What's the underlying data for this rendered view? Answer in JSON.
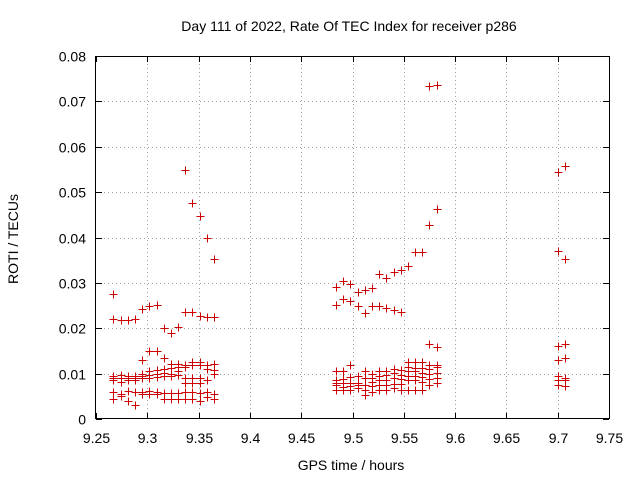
{
  "chart_data": {
    "type": "scatter",
    "title": "Day 111 of 2022, Rate Of TEC Index for receiver p286",
    "xlabel": "GPS time / hours",
    "ylabel": "ROTI / TECUs",
    "xlim": [
      9.25,
      9.75
    ],
    "ylim": [
      0,
      0.08
    ],
    "xticks": [
      "9.25",
      "9.3",
      "9.35",
      "9.4",
      "9.45",
      "9.5",
      "9.55",
      "9.6",
      "9.65",
      "9.7",
      "9.75"
    ],
    "yticks": [
      "0",
      "0.01",
      "0.02",
      "0.03",
      "0.04",
      "0.05",
      "0.06",
      "0.07",
      "0.08"
    ],
    "grid": true,
    "marker": "+",
    "color": "#cc0000",
    "series": [
      {
        "name": "ROTI",
        "points": [
          [
            9.267,
            0.0275
          ],
          [
            9.267,
            0.022
          ],
          [
            9.267,
            0.0095
          ],
          [
            9.267,
            0.009
          ],
          [
            9.267,
            0.0085
          ],
          [
            9.267,
            0.006
          ],
          [
            9.267,
            0.0045
          ],
          [
            9.274,
            0.0218
          ],
          [
            9.274,
            0.0098
          ],
          [
            9.274,
            0.009
          ],
          [
            9.274,
            0.0082
          ],
          [
            9.274,
            0.0055
          ],
          [
            9.274,
            0.005
          ],
          [
            9.281,
            0.0218
          ],
          [
            9.281,
            0.0095
          ],
          [
            9.281,
            0.009
          ],
          [
            9.281,
            0.0085
          ],
          [
            9.281,
            0.0062
          ],
          [
            9.281,
            0.004
          ],
          [
            9.288,
            0.022
          ],
          [
            9.288,
            0.0095
          ],
          [
            9.288,
            0.009
          ],
          [
            9.288,
            0.0087
          ],
          [
            9.288,
            0.006
          ],
          [
            9.288,
            0.003
          ],
          [
            9.295,
            0.0243
          ],
          [
            9.295,
            0.013
          ],
          [
            9.295,
            0.01
          ],
          [
            9.295,
            0.0095
          ],
          [
            9.295,
            0.009
          ],
          [
            9.295,
            0.006
          ],
          [
            9.295,
            0.0055
          ],
          [
            9.302,
            0.025
          ],
          [
            9.302,
            0.015
          ],
          [
            9.302,
            0.0105
          ],
          [
            9.302,
            0.0098
          ],
          [
            9.302,
            0.009
          ],
          [
            9.302,
            0.0062
          ],
          [
            9.302,
            0.0055
          ],
          [
            9.309,
            0.0252
          ],
          [
            9.309,
            0.015
          ],
          [
            9.309,
            0.0108
          ],
          [
            9.309,
            0.01
          ],
          [
            9.309,
            0.0092
          ],
          [
            9.309,
            0.006
          ],
          [
            9.309,
            0.0055
          ],
          [
            9.316,
            0.02
          ],
          [
            9.316,
            0.0135
          ],
          [
            9.316,
            0.011
          ],
          [
            9.316,
            0.0102
          ],
          [
            9.316,
            0.0095
          ],
          [
            9.316,
            0.0058
          ],
          [
            9.316,
            0.0043
          ],
          [
            9.323,
            0.019
          ],
          [
            9.323,
            0.0122
          ],
          [
            9.323,
            0.0112
          ],
          [
            9.323,
            0.01
          ],
          [
            9.323,
            0.0095
          ],
          [
            9.323,
            0.0058
          ],
          [
            9.323,
            0.0043
          ],
          [
            9.33,
            0.0202
          ],
          [
            9.33,
            0.0122
          ],
          [
            9.33,
            0.0115
          ],
          [
            9.33,
            0.0105
          ],
          [
            9.33,
            0.0098
          ],
          [
            9.33,
            0.0058
          ],
          [
            9.33,
            0.0043
          ],
          [
            9.337,
            0.0548
          ],
          [
            9.337,
            0.0235
          ],
          [
            9.337,
            0.0118
          ],
          [
            9.337,
            0.0115
          ],
          [
            9.337,
            0.009
          ],
          [
            9.337,
            0.008
          ],
          [
            9.337,
            0.006
          ],
          [
            9.337,
            0.0045
          ],
          [
            9.344,
            0.0475
          ],
          [
            9.344,
            0.0235
          ],
          [
            9.344,
            0.0125
          ],
          [
            9.344,
            0.012
          ],
          [
            9.344,
            0.009
          ],
          [
            9.344,
            0.008
          ],
          [
            9.344,
            0.006
          ],
          [
            9.344,
            0.0045
          ],
          [
            9.351,
            0.0448
          ],
          [
            9.351,
            0.0228
          ],
          [
            9.351,
            0.0125
          ],
          [
            9.351,
            0.012
          ],
          [
            9.351,
            0.009
          ],
          [
            9.351,
            0.008
          ],
          [
            9.351,
            0.0058
          ],
          [
            9.351,
            0.004
          ],
          [
            9.358,
            0.0398
          ],
          [
            9.358,
            0.0225
          ],
          [
            9.358,
            0.012
          ],
          [
            9.358,
            0.011
          ],
          [
            9.358,
            0.0085
          ],
          [
            9.358,
            0.006
          ],
          [
            9.358,
            0.0048
          ],
          [
            9.365,
            0.0353
          ],
          [
            9.365,
            0.0225
          ],
          [
            9.365,
            0.0122
          ],
          [
            9.365,
            0.0108
          ],
          [
            9.365,
            0.01
          ],
          [
            9.365,
            0.0055
          ],
          [
            9.365,
            0.0045
          ],
          [
            9.484,
            0.029
          ],
          [
            9.484,
            0.0252
          ],
          [
            9.484,
            0.0105
          ],
          [
            9.484,
            0.0085
          ],
          [
            9.484,
            0.008
          ],
          [
            9.484,
            0.0075
          ],
          [
            9.484,
            0.0065
          ],
          [
            9.491,
            0.0305
          ],
          [
            9.491,
            0.0265
          ],
          [
            9.491,
            0.0105
          ],
          [
            9.491,
            0.0088
          ],
          [
            9.491,
            0.008
          ],
          [
            9.491,
            0.007
          ],
          [
            9.491,
            0.0065
          ],
          [
            9.498,
            0.0298
          ],
          [
            9.498,
            0.026
          ],
          [
            9.498,
            0.0118
          ],
          [
            9.498,
            0.0092
          ],
          [
            9.498,
            0.008
          ],
          [
            9.498,
            0.0072
          ],
          [
            9.498,
            0.0065
          ],
          [
            9.505,
            0.028
          ],
          [
            9.505,
            0.025
          ],
          [
            9.505,
            0.0095
          ],
          [
            9.505,
            0.008
          ],
          [
            9.505,
            0.0075
          ],
          [
            9.505,
            0.0068
          ],
          [
            9.512,
            0.0285
          ],
          [
            9.512,
            0.0233
          ],
          [
            9.512,
            0.0105
          ],
          [
            9.512,
            0.009
          ],
          [
            9.512,
            0.0075
          ],
          [
            9.512,
            0.0065
          ],
          [
            9.512,
            0.0052
          ],
          [
            9.519,
            0.0288
          ],
          [
            9.519,
            0.025
          ],
          [
            9.519,
            0.01
          ],
          [
            9.519,
            0.009
          ],
          [
            9.519,
            0.0082
          ],
          [
            9.519,
            0.0072
          ],
          [
            9.519,
            0.006
          ],
          [
            9.526,
            0.032
          ],
          [
            9.526,
            0.025
          ],
          [
            9.526,
            0.0105
          ],
          [
            9.526,
            0.0095
          ],
          [
            9.526,
            0.0085
          ],
          [
            9.526,
            0.0075
          ],
          [
            9.526,
            0.0065
          ],
          [
            9.533,
            0.031
          ],
          [
            9.533,
            0.0245
          ],
          [
            9.533,
            0.0105
          ],
          [
            9.533,
            0.0098
          ],
          [
            9.533,
            0.0085
          ],
          [
            9.533,
            0.0075
          ],
          [
            9.533,
            0.0065
          ],
          [
            9.54,
            0.0325
          ],
          [
            9.54,
            0.024
          ],
          [
            9.54,
            0.011
          ],
          [
            9.54,
            0.0102
          ],
          [
            9.54,
            0.009
          ],
          [
            9.54,
            0.0078
          ],
          [
            9.54,
            0.0068
          ],
          [
            9.547,
            0.0328
          ],
          [
            9.547,
            0.0235
          ],
          [
            9.547,
            0.0108
          ],
          [
            9.547,
            0.0098
          ],
          [
            9.547,
            0.0088
          ],
          [
            9.547,
            0.0078
          ],
          [
            9.547,
            0.0065
          ],
          [
            9.554,
            0.0338
          ],
          [
            9.554,
            0.0125
          ],
          [
            9.554,
            0.0115
          ],
          [
            9.554,
            0.0105
          ],
          [
            9.554,
            0.0095
          ],
          [
            9.554,
            0.0085
          ],
          [
            9.554,
            0.0065
          ],
          [
            9.561,
            0.0367
          ],
          [
            9.561,
            0.0125
          ],
          [
            9.561,
            0.0112
          ],
          [
            9.561,
            0.0105
          ],
          [
            9.561,
            0.0095
          ],
          [
            9.561,
            0.0085
          ],
          [
            9.561,
            0.0065
          ],
          [
            9.568,
            0.0368
          ],
          [
            9.568,
            0.0125
          ],
          [
            9.568,
            0.0112
          ],
          [
            9.568,
            0.0102
          ],
          [
            9.568,
            0.0092
          ],
          [
            9.568,
            0.0082
          ],
          [
            9.568,
            0.0065
          ],
          [
            9.575,
            0.0733
          ],
          [
            9.575,
            0.0428
          ],
          [
            9.575,
            0.0165
          ],
          [
            9.575,
            0.012
          ],
          [
            9.575,
            0.011
          ],
          [
            9.575,
            0.01
          ],
          [
            9.575,
            0.0088
          ],
          [
            9.575,
            0.0075
          ],
          [
            9.582,
            0.0736
          ],
          [
            9.582,
            0.0462
          ],
          [
            9.582,
            0.0158
          ],
          [
            9.582,
            0.012
          ],
          [
            9.582,
            0.0115
          ],
          [
            9.582,
            0.0102
          ],
          [
            9.582,
            0.009
          ],
          [
            9.582,
            0.008
          ],
          [
            9.7,
            0.0545
          ],
          [
            9.7,
            0.037
          ],
          [
            9.7,
            0.016
          ],
          [
            9.7,
            0.013
          ],
          [
            9.7,
            0.0095
          ],
          [
            9.7,
            0.0085
          ],
          [
            9.7,
            0.0075
          ],
          [
            9.707,
            0.0558
          ],
          [
            9.707,
            0.0352
          ],
          [
            9.707,
            0.0165
          ],
          [
            9.707,
            0.0135
          ],
          [
            9.707,
            0.009
          ],
          [
            9.707,
            0.0085
          ],
          [
            9.707,
            0.0072
          ]
        ]
      }
    ]
  }
}
